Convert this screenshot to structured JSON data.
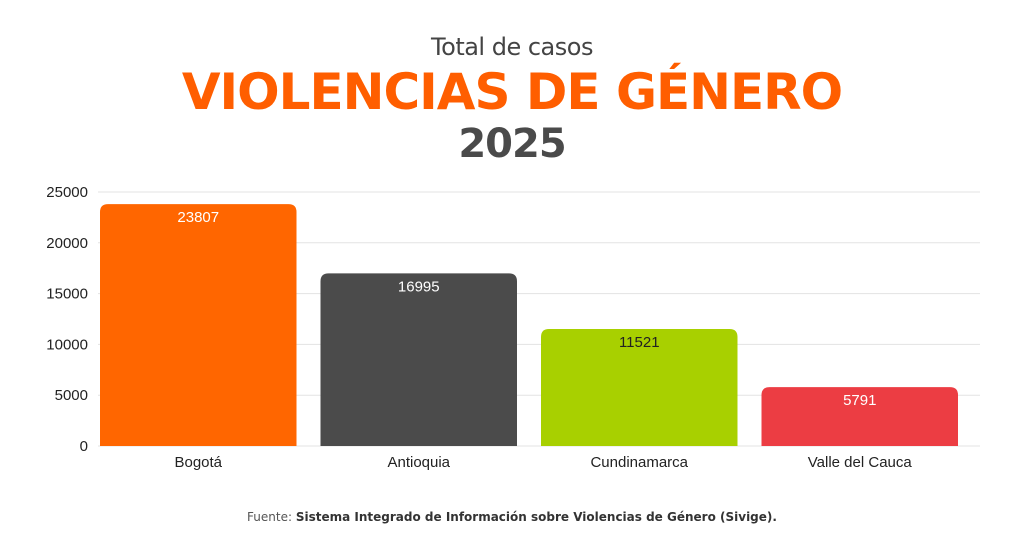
{
  "header": {
    "subtitle": "Total  de casos",
    "title": "VIOLENCIAS DE GÉNERO",
    "year": "2025"
  },
  "footer": {
    "source_label": "Fuente:",
    "source_name": "Sistema Integrado de Información sobre Violencias de Género (Sivige)."
  },
  "chart_data": {
    "type": "bar",
    "title": "VIOLENCIAS DE GÉNERO",
    "categories": [
      "Bogotá",
      "Antioquia",
      "Cundinamarca",
      "Valle del Cauca"
    ],
    "values": [
      23807,
      16995,
      11521,
      5791
    ],
    "bar_colors": [
      "#ff6600",
      "#4b4b4b",
      "#a8d000",
      "#ec3d43"
    ],
    "label_colors": [
      "#ffffff",
      "#ffffff",
      "#222222",
      "#ffffff"
    ],
    "ylim": [
      0,
      25000
    ],
    "yticks": [
      0,
      5000,
      10000,
      15000,
      20000,
      25000
    ],
    "grid": true,
    "legend": "none",
    "xlabel": "",
    "ylabel": ""
  }
}
